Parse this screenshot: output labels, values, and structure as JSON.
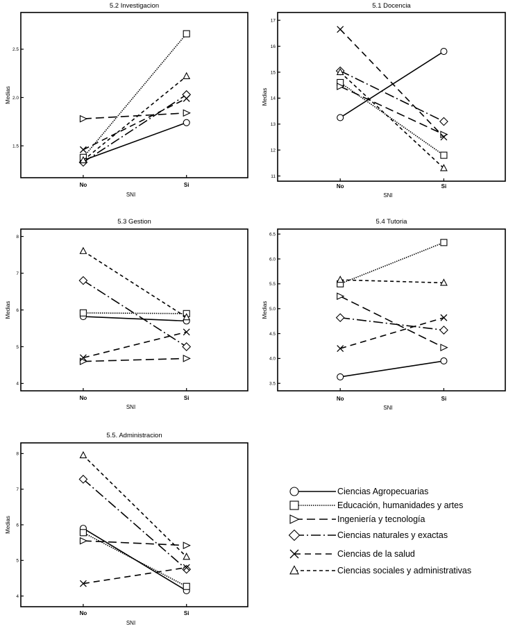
{
  "legend": [
    {
      "name": "Ciencias Agropecuarias",
      "marker": "circle",
      "dash": ""
    },
    {
      "name": "Educación, humanidades y artes",
      "marker": "square",
      "dash": "1.5 1.5"
    },
    {
      "name": "Ingeniería y tecnología",
      "marker": "tri-right",
      "dash": "12 6"
    },
    {
      "name": "Ciencias naturales y exactas",
      "marker": "diamond",
      "dash": "14 4 2 4"
    },
    {
      "name": "Ciencias de la salud",
      "marker": "x",
      "dash": "9 6"
    },
    {
      "name": "Ciencias sociales y administrativas",
      "marker": "tri-up",
      "dash": "5 4"
    }
  ],
  "chart_data": [
    {
      "type": "line",
      "title": "5.2 Investigacion",
      "xlabel": "SNI",
      "ylabel": "Medias",
      "categories": [
        "No",
        "Si"
      ],
      "yticks": [
        "1.5",
        "2.0",
        "2.5"
      ],
      "ylim": [
        1.17,
        2.88
      ],
      "series": [
        {
          "name": "Ciencias Agropecuarias",
          "values": [
            1.35,
            1.74
          ]
        },
        {
          "name": "Educación, humanidades y artes",
          "values": [
            1.38,
            2.66
          ]
        },
        {
          "name": "Ingeniería y tecnología",
          "values": [
            1.78,
            1.84
          ]
        },
        {
          "name": "Ciencias naturales y exactas",
          "values": [
            1.33,
            2.03
          ]
        },
        {
          "name": "Ciencias de la salud",
          "values": [
            1.46,
            1.99
          ]
        },
        {
          "name": "Ciencias sociales y administrativas",
          "values": [
            1.35,
            2.22
          ]
        }
      ]
    },
    {
      "type": "line",
      "title": "5.1 Docencia",
      "xlabel": "SNI",
      "ylabel": "Medias",
      "categories": [
        "No",
        "Si"
      ],
      "yticks": [
        "11",
        "12",
        "13",
        "14",
        "15",
        "16",
        "17"
      ],
      "ylim": [
        10.8,
        17.3
      ],
      "series": [
        {
          "name": "Ciencias Agropecuarias",
          "values": [
            13.25,
            15.8
          ]
        },
        {
          "name": "Educación, humanidades y artes",
          "values": [
            14.6,
            11.8
          ]
        },
        {
          "name": "Ingeniería y tecnología",
          "values": [
            14.45,
            12.6
          ]
        },
        {
          "name": "Ciencias naturales y exactas",
          "values": [
            15.05,
            13.1
          ]
        },
        {
          "name": "Ciencias de la salud",
          "values": [
            16.65,
            12.5
          ]
        },
        {
          "name": "Ciencias sociales y administrativas",
          "values": [
            15.0,
            11.3
          ]
        }
      ]
    },
    {
      "type": "line",
      "title": "5.3 Gestion",
      "xlabel": "SNI",
      "ylabel": "Medias",
      "categories": [
        "No",
        "Si"
      ],
      "yticks": [
        "4",
        "5",
        "6",
        "7",
        "8"
      ],
      "ylim": [
        3.8,
        8.2
      ],
      "series": [
        {
          "name": "Ciencias Agropecuarias",
          "values": [
            5.82,
            5.7
          ]
        },
        {
          "name": "Educación, humanidades y artes",
          "values": [
            5.92,
            5.9
          ]
        },
        {
          "name": "Ingeniería y tecnología",
          "values": [
            4.6,
            4.68
          ]
        },
        {
          "name": "Ciencias naturales y exactas",
          "values": [
            6.8,
            5.0
          ]
        },
        {
          "name": "Ciencias de la salud",
          "values": [
            4.7,
            5.4
          ]
        },
        {
          "name": "Ciencias sociales y administrativas",
          "values": [
            7.6,
            5.8
          ]
        }
      ]
    },
    {
      "type": "line",
      "title": "5.4 Tutoria",
      "xlabel": "SNI",
      "ylabel": "Medias",
      "categories": [
        "No",
        "Si"
      ],
      "yticks": [
        "3.5",
        "4.0",
        "4.5",
        "5.0",
        "5.5",
        "6.0",
        "6.5"
      ],
      "ylim": [
        3.35,
        6.6
      ],
      "series": [
        {
          "name": "Ciencias Agropecuarias",
          "values": [
            3.63,
            3.95
          ]
        },
        {
          "name": "Educación, humanidades y artes",
          "values": [
            5.5,
            6.33
          ]
        },
        {
          "name": "Ingeniería y tecnología",
          "values": [
            5.25,
            4.22
          ]
        },
        {
          "name": "Ciencias naturales y exactas",
          "values": [
            4.82,
            4.57
          ]
        },
        {
          "name": "Ciencias de la salud",
          "values": [
            4.2,
            4.82
          ]
        },
        {
          "name": "Ciencias sociales y administrativas",
          "values": [
            5.58,
            5.52
          ]
        }
      ]
    },
    {
      "type": "line",
      "title": "5.5. Administracion",
      "xlabel": "SNI",
      "ylabel": "Medias",
      "categories": [
        "No",
        "Si"
      ],
      "yticks": [
        "4",
        "5",
        "6",
        "7",
        "8"
      ],
      "ylim": [
        3.7,
        8.3
      ],
      "series": [
        {
          "name": "Ciencias Agropecuarias",
          "values": [
            5.9,
            4.15
          ]
        },
        {
          "name": "Educación, humanidades y artes",
          "values": [
            5.78,
            4.27
          ]
        },
        {
          "name": "Ingeniería y tecnología",
          "values": [
            5.55,
            5.42
          ]
        },
        {
          "name": "Ciencias naturales y exactas",
          "values": [
            7.28,
            4.75
          ]
        },
        {
          "name": "Ciencias de la salud",
          "values": [
            4.35,
            4.8
          ]
        },
        {
          "name": "Ciencias sociales y administrativas",
          "values": [
            7.95,
            5.1
          ]
        }
      ]
    }
  ]
}
